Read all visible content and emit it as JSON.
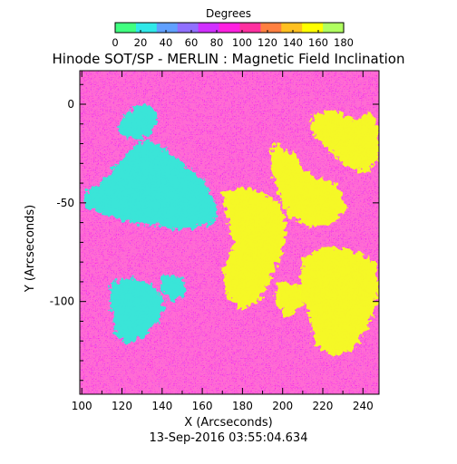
{
  "chart_data": {
    "type": "heatmap",
    "title": "Hinode SOT/SP - MERLIN : Magnetic Field Inclination",
    "xlabel": "X (Arcseconds)",
    "ylabel": "Y (Arcseconds)",
    "xlim": [
      99,
      248
    ],
    "ylim": [
      -147,
      17
    ],
    "x_ticks": [
      "100",
      "120",
      "140",
      "160",
      "180",
      "200",
      "220",
      "240"
    ],
    "y_ticks": [
      "0",
      "-50",
      "-100"
    ],
    "x_tick_values": [
      100,
      120,
      140,
      160,
      180,
      200,
      220,
      240
    ],
    "y_tick_values": [
      0,
      -50,
      -100
    ],
    "colorbar": {
      "title": "Degrees",
      "range": [
        0,
        180
      ],
      "tick_labels": [
        "0",
        "20",
        "40",
        "60",
        "80",
        "100",
        "120",
        "140",
        "160",
        "180"
      ],
      "colors": [
        "#40ff80",
        "#30e8e8",
        "#60a0ff",
        "#9070ff",
        "#d030ff",
        "#ff20e0",
        "#ff30a0",
        "#ff8040",
        "#ffc020",
        "#ffff00",
        "#b0ff60"
      ]
    },
    "background_value_deg": 90,
    "regions": [
      {
        "polarity": "low-inclination (cyan, ~30-40 deg)",
        "points": [
          [
            100,
            -45
          ],
          [
            110,
            -40
          ],
          [
            118,
            -30
          ],
          [
            125,
            -22
          ],
          [
            132,
            -18
          ],
          [
            140,
            -22
          ],
          [
            150,
            -30
          ],
          [
            160,
            -38
          ],
          [
            166,
            -48
          ],
          [
            168,
            -58
          ],
          [
            160,
            -62
          ],
          [
            150,
            -64
          ],
          [
            138,
            -62
          ],
          [
            125,
            -60
          ],
          [
            112,
            -56
          ],
          [
            102,
            -52
          ]
        ]
      },
      {
        "polarity": "low-inclination (cyan, ~30-40 deg)",
        "points": [
          [
            118,
            -10
          ],
          [
            125,
            -2
          ],
          [
            133,
            0
          ],
          [
            138,
            -6
          ],
          [
            135,
            -15
          ],
          [
            126,
            -18
          ],
          [
            119,
            -15
          ]
        ]
      },
      {
        "polarity": "low-inclination (cyan, ~30-40 deg)",
        "points": [
          [
            115,
            -90
          ],
          [
            125,
            -88
          ],
          [
            135,
            -92
          ],
          [
            142,
            -100
          ],
          [
            138,
            -110
          ],
          [
            130,
            -118
          ],
          [
            122,
            -122
          ],
          [
            116,
            -115
          ],
          [
            114,
            -102
          ]
        ]
      },
      {
        "polarity": "low-inclination (cyan, ~30-40 deg)",
        "points": [
          [
            140,
            -86
          ],
          [
            150,
            -88
          ],
          [
            152,
            -96
          ],
          [
            145,
            -100
          ],
          [
            139,
            -94
          ]
        ]
      },
      {
        "polarity": "high-inclination (yellow, ~150-160 deg)",
        "points": [
          [
            170,
            -45
          ],
          [
            180,
            -42
          ],
          [
            190,
            -45
          ],
          [
            198,
            -50
          ],
          [
            202,
            -62
          ],
          [
            200,
            -75
          ],
          [
            194,
            -88
          ],
          [
            188,
            -100
          ],
          [
            180,
            -104
          ],
          [
            172,
            -98
          ],
          [
            170,
            -85
          ],
          [
            176,
            -70
          ],
          [
            172,
            -58
          ]
        ]
      },
      {
        "polarity": "high-inclination (yellow, ~150-160 deg)",
        "points": [
          [
            195,
            -20
          ],
          [
            205,
            -25
          ],
          [
            212,
            -35
          ],
          [
            220,
            -38
          ],
          [
            228,
            -42
          ],
          [
            232,
            -52
          ],
          [
            226,
            -60
          ],
          [
            214,
            -62
          ],
          [
            204,
            -58
          ],
          [
            198,
            -46
          ],
          [
            194,
            -32
          ]
        ]
      },
      {
        "polarity": "high-inclination (yellow, ~150-160 deg)",
        "points": [
          [
            215,
            -5
          ],
          [
            225,
            -3
          ],
          [
            236,
            -8
          ],
          [
            244,
            -4
          ],
          [
            248,
            -12
          ],
          [
            248,
            -28
          ],
          [
            242,
            -35
          ],
          [
            232,
            -32
          ],
          [
            222,
            -22
          ],
          [
            214,
            -14
          ]
        ]
      },
      {
        "polarity": "high-inclination (yellow, ~150-160 deg)",
        "points": [
          [
            210,
            -78
          ],
          [
            222,
            -72
          ],
          [
            234,
            -74
          ],
          [
            246,
            -80
          ],
          [
            248,
            -96
          ],
          [
            244,
            -110
          ],
          [
            236,
            -124
          ],
          [
            226,
            -128
          ],
          [
            216,
            -122
          ],
          [
            214,
            -108
          ],
          [
            208,
            -96
          ]
        ]
      },
      {
        "polarity": "high-inclination (yellow, ~150-160 deg)",
        "points": [
          [
            198,
            -90
          ],
          [
            208,
            -92
          ],
          [
            210,
            -102
          ],
          [
            202,
            -108
          ],
          [
            196,
            -100
          ]
        ]
      }
    ],
    "timestamp": "13-Sep-2016 03:55:04.634"
  }
}
